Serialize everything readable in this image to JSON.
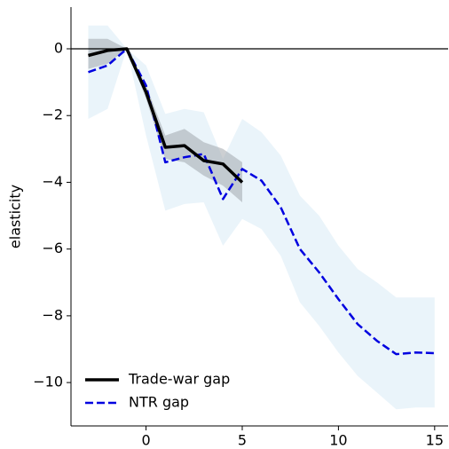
{
  "chart_data": {
    "type": "line",
    "ylabel": "elasticity",
    "xlim": [
      -3.9,
      15.7
    ],
    "ylim": [
      -11.3,
      1.25
    ],
    "xticks": [
      0,
      5,
      10,
      15
    ],
    "yticks": [
      {
        "value": -10,
        "label": "−10"
      },
      {
        "value": -8,
        "label": "−8"
      },
      {
        "value": -6,
        "label": "−6"
      },
      {
        "value": -4,
        "label": "−4"
      },
      {
        "value": -2,
        "label": "−2"
      },
      0
    ],
    "hline": 0,
    "legend": "lower left",
    "series": [
      {
        "name": "NTR gap",
        "color": "#0000e0",
        "band_color": "#d6e9f6",
        "dash": true,
        "x": [
          -3,
          -2,
          -1,
          0,
          1,
          2,
          3,
          4,
          5,
          6,
          7,
          8,
          9,
          10,
          11,
          12,
          13,
          14,
          15
        ],
        "values": [
          -0.7,
          -0.5,
          0,
          -1.1,
          -3.4,
          -3.25,
          -3.15,
          -4.5,
          -3.6,
          -3.95,
          -4.75,
          -6.0,
          -6.7,
          -7.5,
          -8.25,
          -8.75,
          -9.15,
          -9.1,
          -9.12
        ],
        "upper": [
          0.7,
          0.7,
          0,
          -0.5,
          -1.95,
          -1.8,
          -1.9,
          -3.3,
          -2.1,
          -2.5,
          -3.2,
          -4.4,
          -5.0,
          -5.9,
          -6.6,
          -7.0,
          -7.45,
          -7.45,
          -7.45
        ],
        "lower": [
          -2.1,
          -1.8,
          0,
          -2.6,
          -4.85,
          -4.65,
          -4.6,
          -5.9,
          -5.1,
          -5.4,
          -6.2,
          -7.6,
          -8.3,
          -9.1,
          -9.8,
          -10.3,
          -10.8,
          -10.75,
          -10.75
        ]
      },
      {
        "name": "Trade-war gap",
        "color": "#000000",
        "band_color": "#9aa0a6",
        "dash": false,
        "x": [
          -3,
          -2,
          -1,
          0,
          1,
          2,
          3,
          4,
          5
        ],
        "values": [
          -0.2,
          -0.05,
          0,
          -1.3,
          -2.95,
          -2.9,
          -3.35,
          -3.45,
          -4.0
        ],
        "upper": [
          0.3,
          0.3,
          0,
          -1.1,
          -2.6,
          -2.4,
          -2.8,
          -3.0,
          -3.4
        ],
        "lower": [
          -0.6,
          -0.45,
          0,
          -1.5,
          -3.3,
          -3.4,
          -3.8,
          -4.1,
          -4.6
        ]
      }
    ]
  }
}
